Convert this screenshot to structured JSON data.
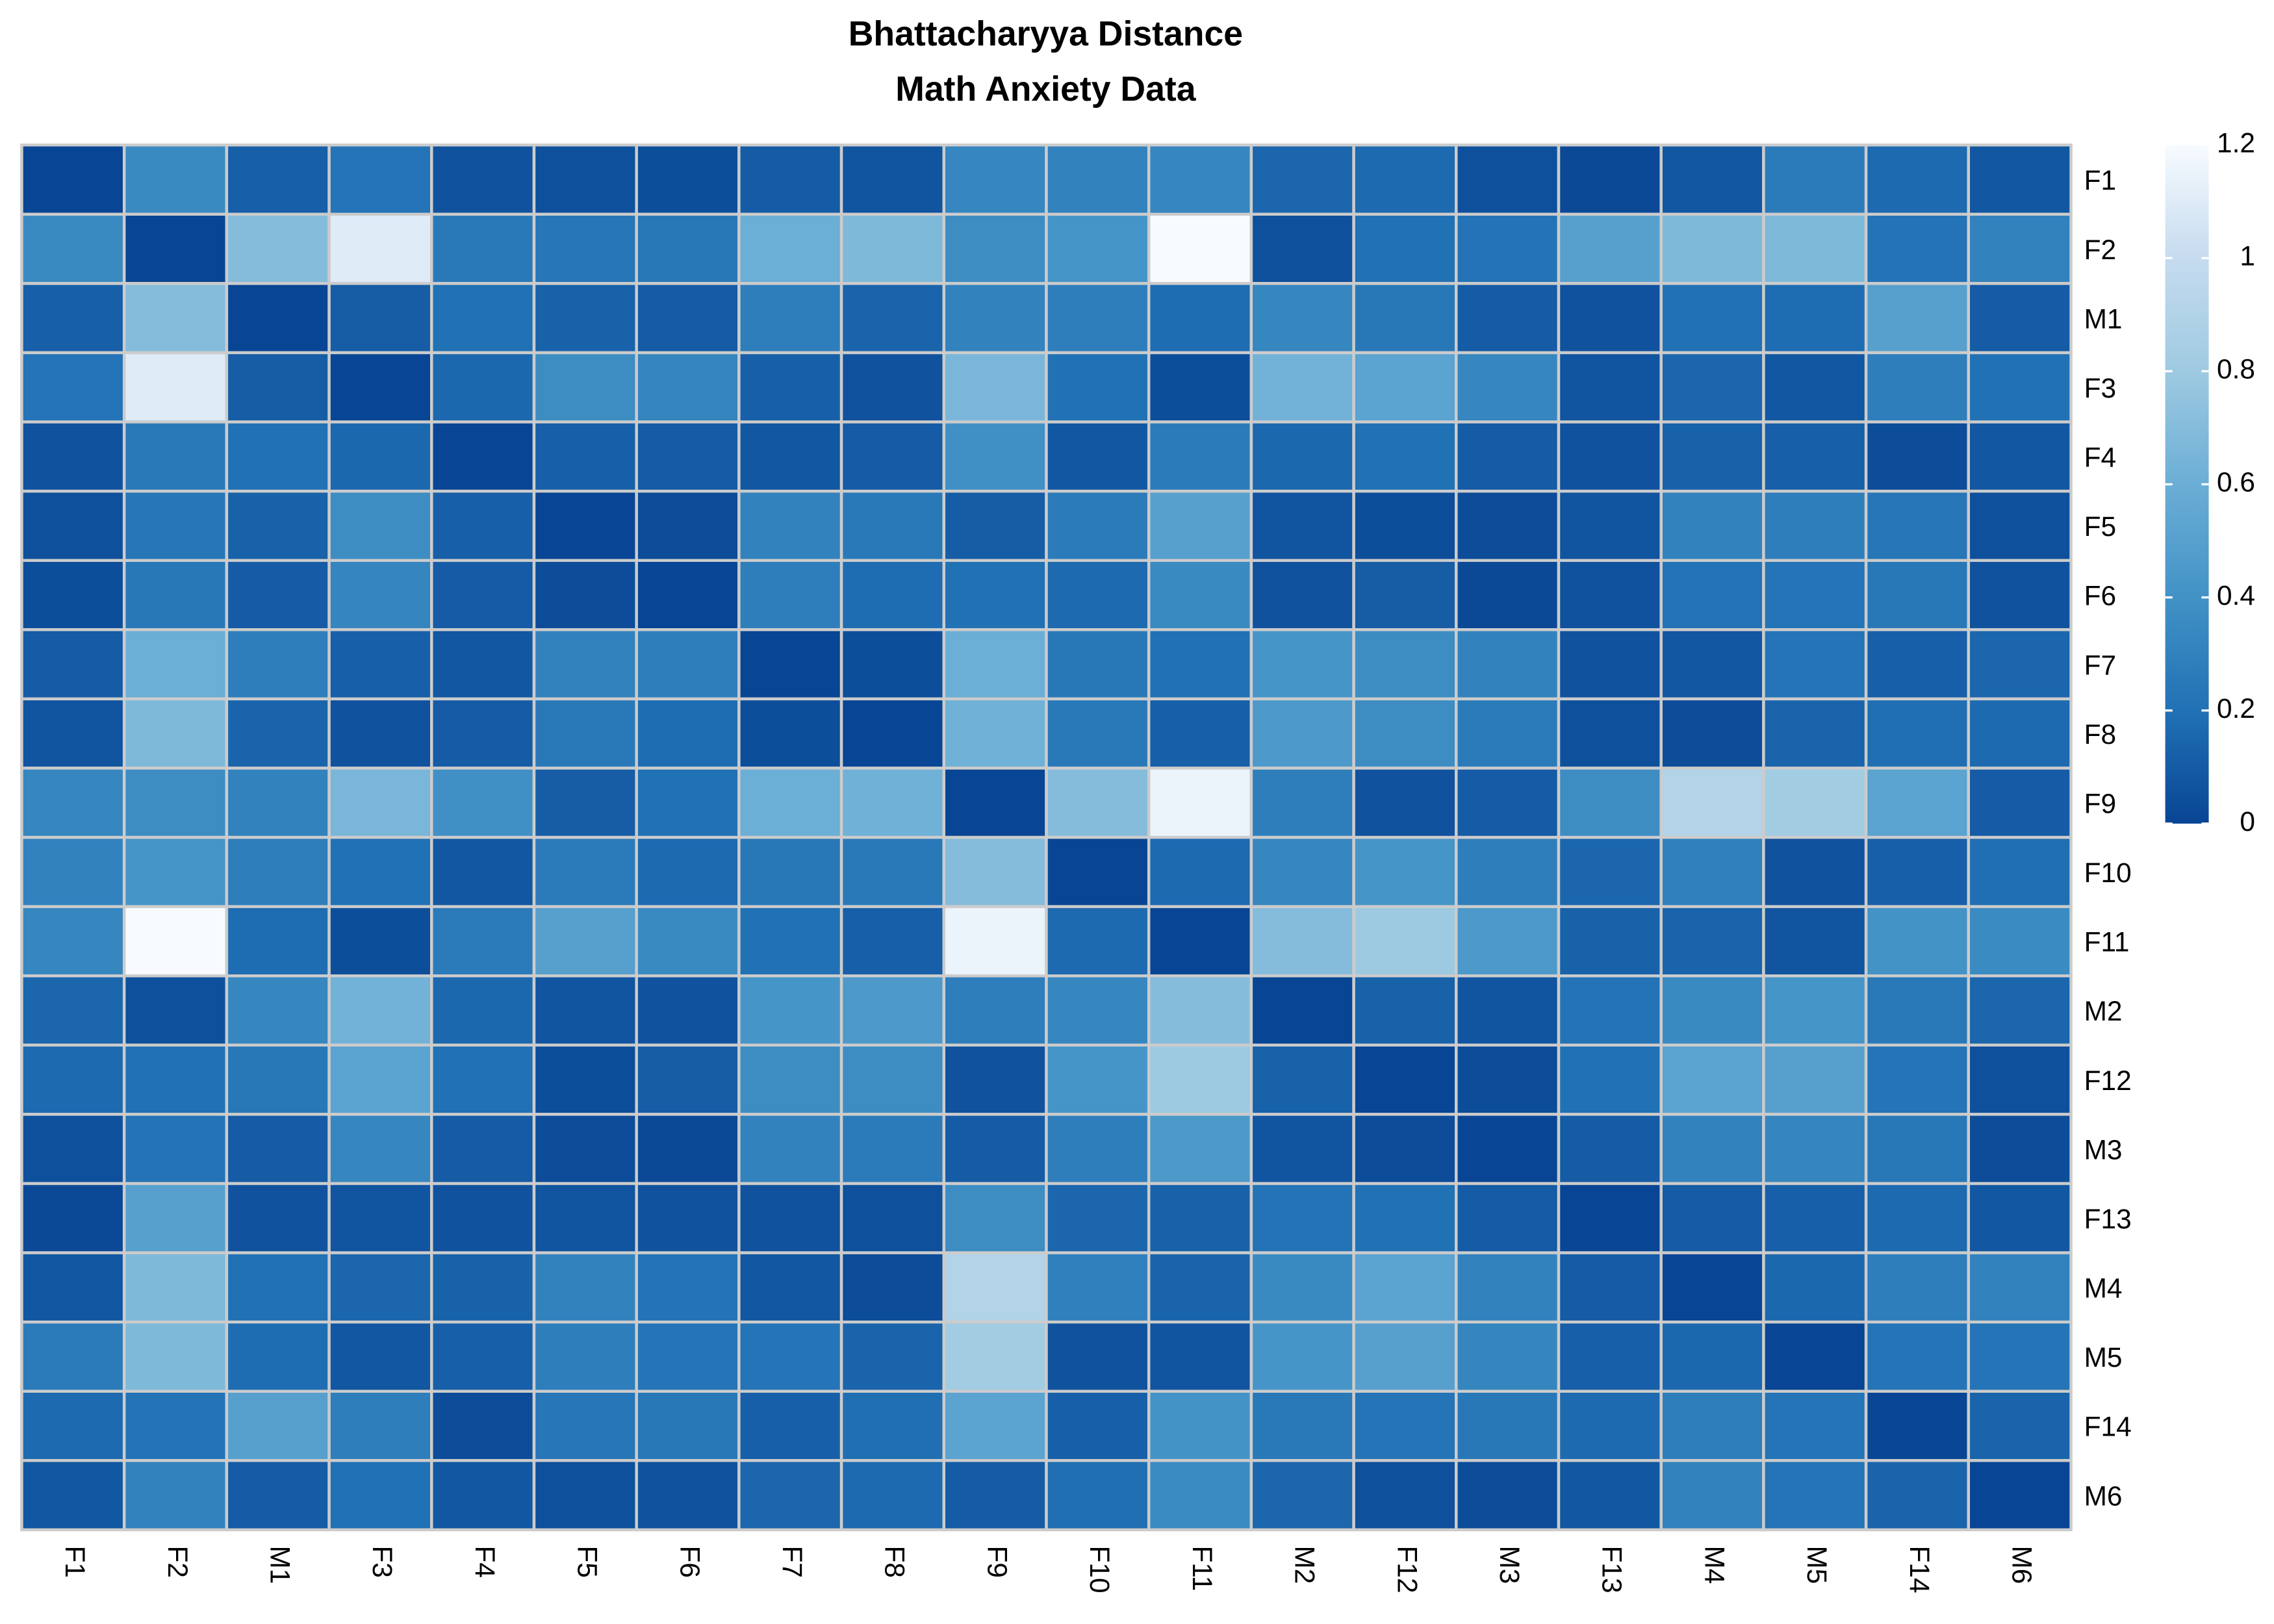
{
  "chart_data": {
    "type": "heatmap",
    "title": "Bhattacharyya Distance",
    "subtitle": "Math Anxiety Data",
    "x": [
      "F1",
      "F2",
      "M1",
      "F3",
      "F4",
      "F5",
      "F6",
      "F7",
      "F8",
      "F9",
      "F10",
      "F11",
      "M2",
      "F12",
      "M3",
      "F13",
      "M4",
      "M5",
      "F14",
      "M6"
    ],
    "y": [
      "F1",
      "F2",
      "M1",
      "F3",
      "F4",
      "F5",
      "F6",
      "F7",
      "F8",
      "F9",
      "F10",
      "F11",
      "M2",
      "F12",
      "M3",
      "F13",
      "M4",
      "M5",
      "F14",
      "M6"
    ],
    "z": [
      [
        0,
        0.35,
        0.12,
        0.22,
        0.06,
        0.05,
        0.04,
        0.1,
        0.07,
        0.33,
        0.3,
        0.33,
        0.15,
        0.17,
        0.05,
        0.02,
        0.08,
        0.26,
        0.17,
        0.08
      ],
      [
        0.35,
        0,
        0.7,
        1.1,
        0.25,
        0.23,
        0.24,
        0.6,
        0.68,
        0.37,
        0.42,
        1.2,
        0.05,
        0.2,
        0.21,
        0.5,
        0.68,
        0.68,
        0.21,
        0.3
      ],
      [
        0.12,
        0.7,
        0,
        0.11,
        0.2,
        0.13,
        0.1,
        0.28,
        0.14,
        0.3,
        0.28,
        0.18,
        0.33,
        0.24,
        0.1,
        0.06,
        0.2,
        0.18,
        0.5,
        0.1
      ],
      [
        0.22,
        1.1,
        0.11,
        0,
        0.16,
        0.37,
        0.32,
        0.12,
        0.06,
        0.66,
        0.2,
        0.04,
        0.63,
        0.52,
        0.33,
        0.07,
        0.15,
        0.08,
        0.28,
        0.2
      ],
      [
        0.06,
        0.25,
        0.2,
        0.16,
        0,
        0.12,
        0.1,
        0.08,
        0.1,
        0.39,
        0.08,
        0.26,
        0.16,
        0.2,
        0.1,
        0.06,
        0.13,
        0.12,
        0.03,
        0.08
      ],
      [
        0.05,
        0.23,
        0.13,
        0.37,
        0.12,
        0,
        0.03,
        0.3,
        0.25,
        0.11,
        0.26,
        0.5,
        0.07,
        0.04,
        0.03,
        0.07,
        0.3,
        0.28,
        0.23,
        0.05
      ],
      [
        0.04,
        0.24,
        0.1,
        0.32,
        0.1,
        0.03,
        0,
        0.28,
        0.18,
        0.2,
        0.17,
        0.35,
        0.06,
        0.11,
        0.02,
        0.06,
        0.21,
        0.22,
        0.24,
        0.06
      ],
      [
        0.1,
        0.6,
        0.28,
        0.12,
        0.08,
        0.3,
        0.28,
        0,
        0.04,
        0.6,
        0.24,
        0.2,
        0.42,
        0.37,
        0.3,
        0.06,
        0.08,
        0.22,
        0.12,
        0.15
      ],
      [
        0.07,
        0.68,
        0.14,
        0.06,
        0.1,
        0.25,
        0.18,
        0.04,
        0,
        0.62,
        0.25,
        0.12,
        0.45,
        0.37,
        0.26,
        0.05,
        0.03,
        0.14,
        0.19,
        0.17
      ],
      [
        0.33,
        0.37,
        0.3,
        0.66,
        0.39,
        0.11,
        0.2,
        0.6,
        0.62,
        0,
        0.7,
        1.15,
        0.28,
        0.06,
        0.1,
        0.37,
        0.9,
        0.82,
        0.52,
        0.1
      ],
      [
        0.3,
        0.42,
        0.28,
        0.2,
        0.08,
        0.26,
        0.17,
        0.24,
        0.25,
        0.7,
        0,
        0.17,
        0.33,
        0.42,
        0.28,
        0.15,
        0.29,
        0.06,
        0.12,
        0.19
      ],
      [
        0.33,
        1.2,
        0.18,
        0.04,
        0.26,
        0.5,
        0.35,
        0.2,
        0.12,
        1.15,
        0.17,
        0,
        0.7,
        0.8,
        0.45,
        0.13,
        0.14,
        0.07,
        0.41,
        0.36
      ],
      [
        0.15,
        0.05,
        0.33,
        0.63,
        0.16,
        0.07,
        0.06,
        0.42,
        0.45,
        0.28,
        0.33,
        0.7,
        0,
        0.13,
        0.07,
        0.21,
        0.35,
        0.42,
        0.25,
        0.15
      ],
      [
        0.17,
        0.2,
        0.24,
        0.52,
        0.2,
        0.04,
        0.11,
        0.37,
        0.37,
        0.06,
        0.42,
        0.8,
        0.13,
        0,
        0.03,
        0.2,
        0.52,
        0.5,
        0.22,
        0.05
      ],
      [
        0.05,
        0.21,
        0.1,
        0.33,
        0.1,
        0.03,
        0.02,
        0.3,
        0.26,
        0.1,
        0.28,
        0.45,
        0.07,
        0.03,
        0,
        0.1,
        0.3,
        0.32,
        0.24,
        0.03
      ],
      [
        0.02,
        0.5,
        0.06,
        0.07,
        0.06,
        0.07,
        0.06,
        0.06,
        0.05,
        0.37,
        0.15,
        0.13,
        0.21,
        0.2,
        0.1,
        0,
        0.1,
        0.12,
        0.17,
        0.08
      ],
      [
        0.08,
        0.68,
        0.2,
        0.15,
        0.13,
        0.3,
        0.21,
        0.08,
        0.03,
        0.9,
        0.29,
        0.14,
        0.35,
        0.52,
        0.3,
        0.1,
        0,
        0.16,
        0.28,
        0.3
      ],
      [
        0.26,
        0.68,
        0.18,
        0.08,
        0.12,
        0.28,
        0.22,
        0.22,
        0.14,
        0.82,
        0.06,
        0.07,
        0.42,
        0.5,
        0.32,
        0.12,
        0.16,
        0,
        0.22,
        0.22
      ],
      [
        0.17,
        0.21,
        0.5,
        0.28,
        0.03,
        0.23,
        0.24,
        0.12,
        0.19,
        0.52,
        0.12,
        0.41,
        0.25,
        0.22,
        0.24,
        0.17,
        0.28,
        0.22,
        0,
        0.14
      ],
      [
        0.08,
        0.3,
        0.1,
        0.2,
        0.08,
        0.05,
        0.06,
        0.15,
        0.17,
        0.1,
        0.19,
        0.36,
        0.15,
        0.05,
        0.03,
        0.08,
        0.3,
        0.22,
        0.14,
        0
      ]
    ],
    "zlim": [
      0,
      1.2
    ],
    "zticks": [
      0,
      0.2,
      0.4,
      0.6,
      0.8,
      1,
      1.2
    ],
    "colors": [
      "#084594",
      "#2171b5",
      "#4292c6",
      "#6baed6",
      "#9ecae1",
      "#c6dbef",
      "#f7fbff"
    ]
  }
}
